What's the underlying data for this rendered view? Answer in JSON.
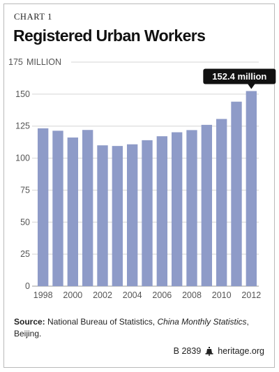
{
  "header": {
    "kicker": "CHART 1",
    "title": "Registered Urban Workers",
    "unit_label": "MILLION"
  },
  "chart_data": {
    "type": "bar",
    "title": "Registered Urban Workers",
    "ylabel": "MILLION",
    "xlabel": "",
    "ylim": [
      0,
      175
    ],
    "yticks": [
      0,
      25,
      50,
      75,
      100,
      125,
      150,
      175
    ],
    "xtick_labels": [
      "1998",
      "2000",
      "2002",
      "2004",
      "2006",
      "2008",
      "2010",
      "2012"
    ],
    "categories": [
      "1998",
      "1999",
      "2000",
      "2001",
      "2002",
      "2003",
      "2004",
      "2005",
      "2006",
      "2007",
      "2008",
      "2009",
      "2010",
      "2011",
      "2012"
    ],
    "values": [
      123.3,
      121.4,
      116.1,
      122.0,
      110.0,
      109.5,
      110.8,
      114.0,
      117.1,
      120.2,
      121.9,
      126.0,
      130.6,
      144.1,
      152.4
    ],
    "annotation": {
      "category": "2012",
      "text": "152.4 million"
    },
    "grid": true,
    "bar_color": "#8e9bc8"
  },
  "source": {
    "label": "Source:",
    "text_before": " National Bureau of Statistics, ",
    "publication": "China Monthly Statistics",
    "text_after": ",",
    "line2": "Beijing."
  },
  "footer": {
    "code": "B 2839",
    "site": "heritage.org",
    "icon": "liberty-bell-icon"
  }
}
